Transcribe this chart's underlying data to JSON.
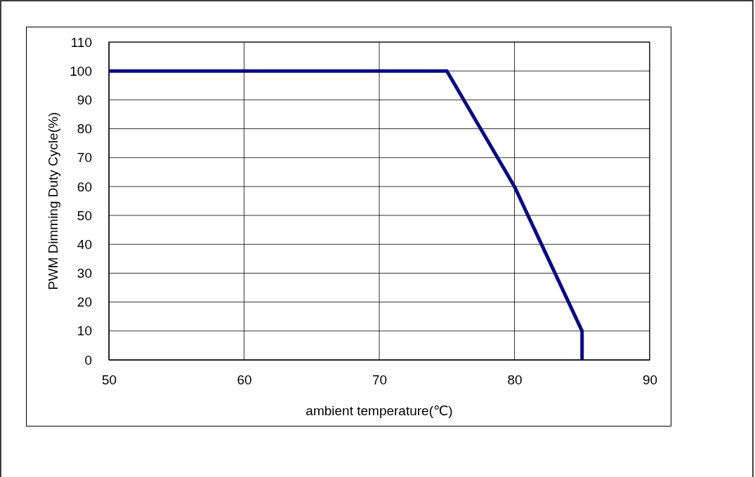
{
  "chart_data": {
    "type": "line",
    "xlabel": "ambient temperature(℃)",
    "ylabel": "PWM Dimming Duty Cycle(%)",
    "x": [
      50,
      75,
      80,
      85,
      85
    ],
    "series": [
      {
        "color": "#0a0a80",
        "values": [
          100,
          100,
          60,
          10,
          0
        ]
      }
    ],
    "xlim": [
      50,
      90
    ],
    "xticks": [
      50,
      60,
      70,
      80,
      90
    ],
    "ylim": [
      0,
      110
    ],
    "yticks": [
      0,
      10,
      20,
      30,
      40,
      50,
      60,
      70,
      80,
      90,
      100,
      110
    ],
    "grid": true,
    "marker": "none",
    "line_style": "solid"
  }
}
